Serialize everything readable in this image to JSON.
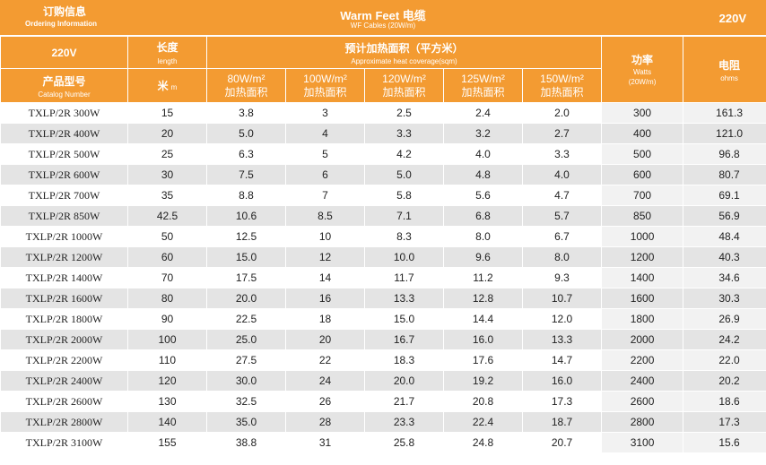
{
  "header": {
    "ordering_zh": "订购信息",
    "ordering_en": "Ordering Information",
    "product_title": "Warm Feet 电缆",
    "product_subtitle": "WF Cables (20W/m)",
    "voltage_right": "220V",
    "voltage_left": "220V"
  },
  "columns": {
    "length_zh": "长度",
    "length_en": "length",
    "coverage_zh": "预计加热面积（平方米）",
    "coverage_en": "Approximate heat coverage(sqm)",
    "catalog_zh": "产品型号",
    "catalog_en": "Catalog Number",
    "unit_zh": "米",
    "unit_en": "m",
    "coverage_cols": [
      {
        "value": "80W/m²",
        "label": "加热面积"
      },
      {
        "value": "100W/m²",
        "label": "加热面积"
      },
      {
        "value": "120W/m²",
        "label": "加热面积"
      },
      {
        "value": "125W/m²",
        "label": "加热面积"
      },
      {
        "value": "150W/m²",
        "label": "加热面积"
      }
    ],
    "power_zh": "功率",
    "power_en": "Watts",
    "power_en2": "(20W/m)",
    "resistance_zh": "电阻",
    "resistance_en": "ohms"
  },
  "rows": [
    {
      "model": "TXLP/2R 300W",
      "length": "15",
      "c80": "3.8",
      "c100": "3",
      "c120": "2.5",
      "c125": "2.4",
      "c150": "2.0",
      "watts": "300",
      "ohms": "161.3"
    },
    {
      "model": "TXLP/2R 400W",
      "length": "20",
      "c80": "5.0",
      "c100": "4",
      "c120": "3.3",
      "c125": "3.2",
      "c150": "2.7",
      "watts": "400",
      "ohms": "121.0"
    },
    {
      "model": "TXLP/2R 500W",
      "length": "25",
      "c80": "6.3",
      "c100": "5",
      "c120": "4.2",
      "c125": "4.0",
      "c150": "3.3",
      "watts": "500",
      "ohms": "96.8"
    },
    {
      "model": "TXLP/2R 600W",
      "length": "30",
      "c80": "7.5",
      "c100": "6",
      "c120": "5.0",
      "c125": "4.8",
      "c150": "4.0",
      "watts": "600",
      "ohms": "80.7"
    },
    {
      "model": "TXLP/2R 700W",
      "length": "35",
      "c80": "8.8",
      "c100": "7",
      "c120": "5.8",
      "c125": "5.6",
      "c150": "4.7",
      "watts": "700",
      "ohms": "69.1"
    },
    {
      "model": "TXLP/2R 850W",
      "length": "42.5",
      "c80": "10.6",
      "c100": "8.5",
      "c120": "7.1",
      "c125": "6.8",
      "c150": "5.7",
      "watts": "850",
      "ohms": "56.9"
    },
    {
      "model": "TXLP/2R 1000W",
      "length": "50",
      "c80": "12.5",
      "c100": "10",
      "c120": "8.3",
      "c125": "8.0",
      "c150": "6.7",
      "watts": "1000",
      "ohms": "48.4"
    },
    {
      "model": "TXLP/2R 1200W",
      "length": "60",
      "c80": "15.0",
      "c100": "12",
      "c120": "10.0",
      "c125": "9.6",
      "c150": "8.0",
      "watts": "1200",
      "ohms": "40.3"
    },
    {
      "model": "TXLP/2R 1400W",
      "length": "70",
      "c80": "17.5",
      "c100": "14",
      "c120": "11.7",
      "c125": "11.2",
      "c150": "9.3",
      "watts": "1400",
      "ohms": "34.6"
    },
    {
      "model": "TXLP/2R 1600W",
      "length": "80",
      "c80": "20.0",
      "c100": "16",
      "c120": "13.3",
      "c125": "12.8",
      "c150": "10.7",
      "watts": "1600",
      "ohms": "30.3"
    },
    {
      "model": "TXLP/2R 1800W",
      "length": "90",
      "c80": "22.5",
      "c100": "18",
      "c120": "15.0",
      "c125": "14.4",
      "c150": "12.0",
      "watts": "1800",
      "ohms": "26.9"
    },
    {
      "model": "TXLP/2R 2000W",
      "length": "100",
      "c80": "25.0",
      "c100": "20",
      "c120": "16.7",
      "c125": "16.0",
      "c150": "13.3",
      "watts": "2000",
      "ohms": "24.2"
    },
    {
      "model": "TXLP/2R 2200W",
      "length": "110",
      "c80": "27.5",
      "c100": "22",
      "c120": "18.3",
      "c125": "17.6",
      "c150": "14.7",
      "watts": "2200",
      "ohms": "22.0"
    },
    {
      "model": "TXLP/2R 2400W",
      "length": "120",
      "c80": "30.0",
      "c100": "24",
      "c120": "20.0",
      "c125": "19.2",
      "c150": "16.0",
      "watts": "2400",
      "ohms": "20.2"
    },
    {
      "model": "TXLP/2R 2600W",
      "length": "130",
      "c80": "32.5",
      "c100": "26",
      "c120": "21.7",
      "c125": "20.8",
      "c150": "17.3",
      "watts": "2600",
      "ohms": "18.6"
    },
    {
      "model": "TXLP/2R 2800W",
      "length": "140",
      "c80": "35.0",
      "c100": "28",
      "c120": "23.3",
      "c125": "22.4",
      "c150": "18.7",
      "watts": "2800",
      "ohms": "17.3"
    },
    {
      "model": "TXLP/2R 3100W",
      "length": "155",
      "c80": "38.8",
      "c100": "31",
      "c120": "25.8",
      "c125": "24.8",
      "c150": "20.7",
      "watts": "3100",
      "ohms": "15.6"
    }
  ],
  "colors": {
    "header_orange": "#f39b32",
    "row_stripe": "#e4e4e4",
    "text": "#222222"
  }
}
